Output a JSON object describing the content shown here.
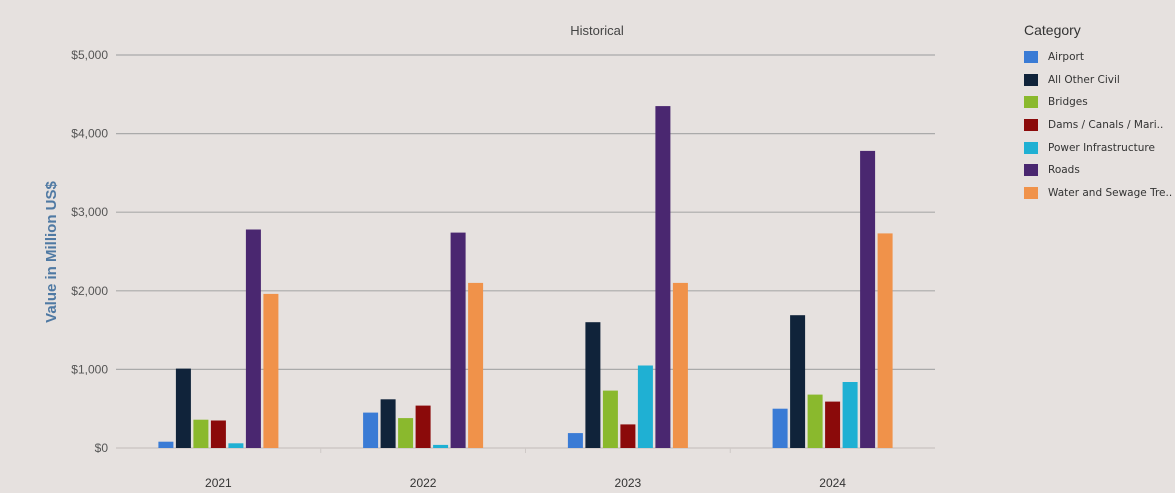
{
  "colors": {
    "background": "#e6e1df",
    "gridline": "#aaaaaa",
    "y_label": "#4f79a3"
  },
  "legend": {
    "title": "Category",
    "items": [
      {
        "label": "Airport",
        "color": "#3a7bd5"
      },
      {
        "label": "All Other Civil",
        "color": "#10233a"
      },
      {
        "label": "Bridges",
        "color": "#8ab92d"
      },
      {
        "label": "Dams / Canals / Mari..",
        "color": "#8b0a0a"
      },
      {
        "label": "Power Infrastructure",
        "color": "#1fb0d3"
      },
      {
        "label": "Roads",
        "color": "#4a2770"
      },
      {
        "label": "Water and Sewage Tre..",
        "color": "#f0924a"
      }
    ]
  },
  "chart_data": {
    "type": "bar",
    "title": "Historical",
    "xlabel": "",
    "ylabel": "Value in Million US$",
    "categories": [
      "2021",
      "2022",
      "2023",
      "2024"
    ],
    "ylim": [
      0,
      5000
    ],
    "yticks": [
      0,
      1000,
      2000,
      3000,
      4000,
      5000
    ],
    "ytick_labels": [
      "$0",
      "$1,000",
      "$2,000",
      "$3,000",
      "$4,000",
      "$5,000"
    ],
    "grid": true,
    "legend_position": "right",
    "series": [
      {
        "name": "Airport",
        "color": "#3a7bd5",
        "values": [
          80,
          450,
          190,
          500
        ]
      },
      {
        "name": "All Other Civil",
        "color": "#10233a",
        "values": [
          1010,
          620,
          1600,
          1690
        ]
      },
      {
        "name": "Bridges",
        "color": "#8ab92d",
        "values": [
          360,
          380,
          730,
          680
        ]
      },
      {
        "name": "Dams / Canals / Mari..",
        "color": "#8b0a0a",
        "values": [
          350,
          540,
          300,
          590
        ]
      },
      {
        "name": "Power Infrastructure",
        "color": "#1fb0d3",
        "values": [
          60,
          40,
          1050,
          840
        ]
      },
      {
        "name": "Roads",
        "color": "#4a2770",
        "values": [
          2780,
          2740,
          4350,
          3780
        ]
      },
      {
        "name": "Water and Sewage Tre..",
        "color": "#f0924a",
        "values": [
          1960,
          2100,
          2100,
          2730
        ]
      }
    ]
  }
}
